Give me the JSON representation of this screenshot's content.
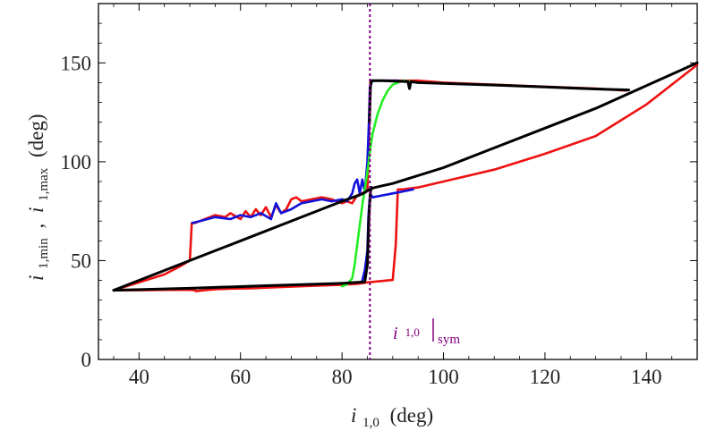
{
  "chart_data": {
    "type": "line",
    "xlabel": {
      "var": "i",
      "sub": "1,0",
      "unit": "(deg)"
    },
    "ylabel": {
      "var1": "i",
      "sub1": "1,min",
      "sep": ",",
      "var2": "i",
      "sub2": "1,max",
      "unit": "(deg)"
    },
    "xlim": [
      32,
      150
    ],
    "ylim": [
      0,
      180
    ],
    "xticks": [
      40,
      60,
      80,
      100,
      120,
      140
    ],
    "yticks": [
      0,
      50,
      100,
      150
    ],
    "annotation": {
      "var": "i",
      "sub": "1,0",
      "post": "sym",
      "x": 85.5
    },
    "colors": {
      "red": "#ee1111",
      "blue": "#1111dd",
      "green": "#22ee22",
      "black": "#000000",
      "purple": "#800080"
    },
    "series": [
      {
        "name": "red-min",
        "color": "red",
        "x": [
          35,
          40,
          45,
          50,
          51,
          51.2,
          52,
          55,
          58,
          62,
          65,
          70,
          75,
          80,
          83,
          84,
          85,
          86,
          87,
          88,
          89,
          90,
          90.6,
          91,
          92,
          95,
          100,
          110,
          120,
          130,
          140,
          150
        ],
        "y": [
          35,
          35,
          35.2,
          35.2,
          35,
          34.5,
          34.8,
          35.5,
          35.8,
          36,
          36.3,
          36.8,
          37.3,
          37.8,
          38.2,
          38.6,
          39,
          39.2,
          39.5,
          39.7,
          40,
          40.2,
          58,
          86,
          86,
          87,
          90,
          96,
          104,
          113,
          129,
          149
        ]
      },
      {
        "name": "red-max",
        "color": "red",
        "x": [
          35,
          40,
          45,
          48,
          50,
          50.4,
          51,
          52,
          53,
          55,
          57,
          58,
          60,
          61,
          62,
          63,
          64,
          65,
          66,
          67,
          68,
          69,
          70,
          71,
          72,
          74,
          76,
          78,
          80,
          81,
          82,
          83,
          84,
          85,
          85.3,
          85.6,
          86,
          88,
          90,
          95,
          100,
          110,
          120,
          130,
          136
        ],
        "y": [
          35,
          39,
          43,
          47,
          50,
          69,
          69,
          70,
          71,
          73,
          72,
          74,
          71,
          75,
          72,
          76,
          73,
          77,
          72,
          78,
          74,
          76,
          81,
          82,
          80,
          81,
          82,
          81,
          79,
          80,
          79,
          83,
          84,
          86,
          110,
          141,
          141,
          141,
          141,
          141,
          140,
          139,
          138,
          137,
          136
        ]
      },
      {
        "name": "blue-max",
        "color": "blue",
        "x": [
          50.5,
          52,
          55,
          58,
          60,
          62,
          64,
          66,
          67,
          68,
          70,
          72,
          74,
          76,
          78,
          80,
          81,
          82,
          82.5,
          83,
          83.5,
          84,
          84.5,
          85,
          85.3,
          85.5,
          86,
          87,
          88,
          90,
          91
        ],
        "y": [
          69,
          70,
          72,
          71,
          73,
          72,
          74,
          71,
          79,
          74,
          76,
          79,
          80,
          81,
          80,
          81,
          80,
          84,
          89,
          91,
          84,
          91,
          85,
          100,
          120,
          138,
          141,
          141,
          141,
          141,
          141
        ]
      },
      {
        "name": "blue-min",
        "color": "blue",
        "x": [
          84,
          84.5,
          85,
          85.2,
          85.5,
          85.8,
          86,
          88,
          90,
          92,
          94
        ],
        "y": [
          40,
          45,
          55,
          72,
          83,
          83,
          82,
          83,
          84,
          85,
          86
        ]
      },
      {
        "name": "green",
        "color": "green",
        "x": [
          80,
          81,
          82,
          82.5,
          83,
          83.5,
          84,
          84.5,
          85,
          85.5,
          86,
          87,
          88,
          89,
          90,
          92,
          95
        ],
        "y": [
          37,
          38,
          41,
          48,
          58,
          68,
          78,
          86,
          95,
          105,
          114,
          124,
          131,
          136,
          139,
          141,
          140
        ]
      },
      {
        "name": "black-diagonal",
        "color": "black",
        "x": [
          35,
          50,
          65,
          80,
          83,
          84,
          84.7,
          85.2,
          85.6,
          86.2,
          87.5,
          90,
          100,
          110,
          120,
          130,
          140,
          150
        ],
        "y": [
          35,
          50,
          65,
          80,
          82.7,
          83.8,
          84.8,
          85.6,
          86.2,
          86.8,
          87.6,
          89,
          97,
          107,
          117,
          127,
          138.5,
          150
        ]
      },
      {
        "name": "black-lower",
        "color": "black",
        "x": [
          35,
          50,
          65,
          80,
          84.5,
          85,
          85.3,
          85.6,
          85.8
        ],
        "y": [
          35,
          36,
          37.3,
          38.5,
          39.2,
          48,
          72,
          85,
          87
        ]
      },
      {
        "name": "black-upper",
        "color": "black",
        "x": [
          85.4,
          85.6,
          85.8,
          86,
          88,
          93,
          93.3,
          93.6,
          95,
          110,
          120,
          130,
          136.5
        ],
        "y": [
          120,
          138,
          141,
          141,
          141,
          140.5,
          137,
          140.5,
          140,
          138.8,
          137.8,
          136.8,
          136.3
        ]
      }
    ]
  }
}
